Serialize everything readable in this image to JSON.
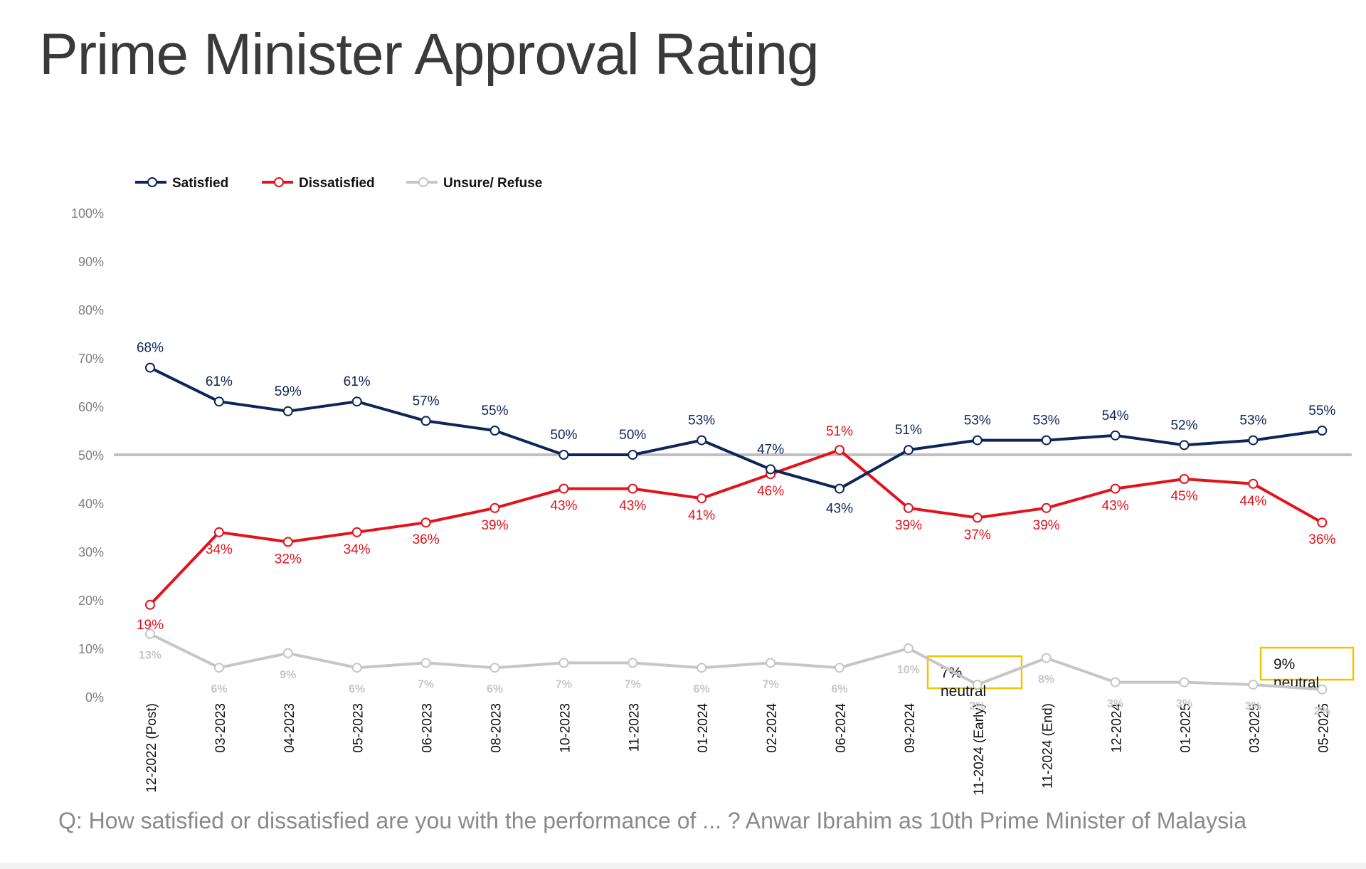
{
  "title": "Prime Minister Approval Rating",
  "question": "Q: How satisfied or dissatisfied are you with the performance of ... ? Anwar Ibrahim as 10th Prime Minister of Malaysia",
  "chart_data": {
    "type": "line",
    "categories": [
      "12-2022 (Post)",
      "03-2023",
      "04-2023",
      "05-2023",
      "06-2023",
      "08-2023",
      "10-2023",
      "11-2023",
      "01-2024",
      "02-2024",
      "06-2024",
      "09-2024",
      "11-2024 (Early)",
      "11-2024 (End)",
      "12-2024",
      "01-2025",
      "03-2025",
      "05-2025"
    ],
    "yticks": [
      "0%",
      "10%",
      "20%",
      "30%",
      "40%",
      "50%",
      "60%",
      "70%",
      "80%",
      "90%",
      "100%"
    ],
    "ylim": [
      0,
      100
    ],
    "reference_line": 50,
    "grid": false,
    "legend_position": "top-left",
    "series": [
      {
        "name": "Satisfied",
        "color": "#0d2559",
        "values": [
          68,
          61,
          59,
          61,
          57,
          55,
          50,
          50,
          53,
          47,
          43,
          51,
          53,
          53,
          54,
          52,
          53,
          55
        ],
        "labels": [
          "68%",
          "61%",
          "59%",
          "61%",
          "57%",
          "55%",
          "50%",
          "50%",
          "53%",
          "47%",
          "43%",
          "51%",
          "53%",
          "53%",
          "54%",
          "52%",
          "53%",
          "55%"
        ]
      },
      {
        "name": "Dissatisfied",
        "color": "#e3121b",
        "values": [
          19,
          34,
          32,
          34,
          36,
          39,
          43,
          43,
          41,
          46,
          51,
          39,
          37,
          39,
          43,
          45,
          44,
          36
        ],
        "labels": [
          "19%",
          "34%",
          "32%",
          "34%",
          "36%",
          "39%",
          "43%",
          "43%",
          "41%",
          "46%",
          "51%",
          "39%",
          "37%",
          "39%",
          "43%",
          "45%",
          "44%",
          "36%"
        ]
      },
      {
        "name": "Unsure/ Refuse",
        "color": "#c6c6c6",
        "values": [
          13,
          6,
          9,
          6,
          7,
          6,
          7,
          7,
          6,
          7,
          6,
          10,
          2.5,
          8,
          3,
          3,
          2.5,
          1.5
        ],
        "labels": [
          "13%",
          "6%",
          "9%",
          "6%",
          "7%",
          "6%",
          "7%",
          "7%",
          "6%",
          "7%",
          "6%",
          "10%",
          "2%",
          "8%",
          "3%",
          "3%",
          "3%",
          "2%"
        ]
      }
    ],
    "annotations": [
      {
        "text_top": "7%",
        "text_bottom": "neutral",
        "category_index": 12
      },
      {
        "text_top": "9%",
        "text_bottom": "neutral",
        "category_index": 17
      }
    ]
  }
}
